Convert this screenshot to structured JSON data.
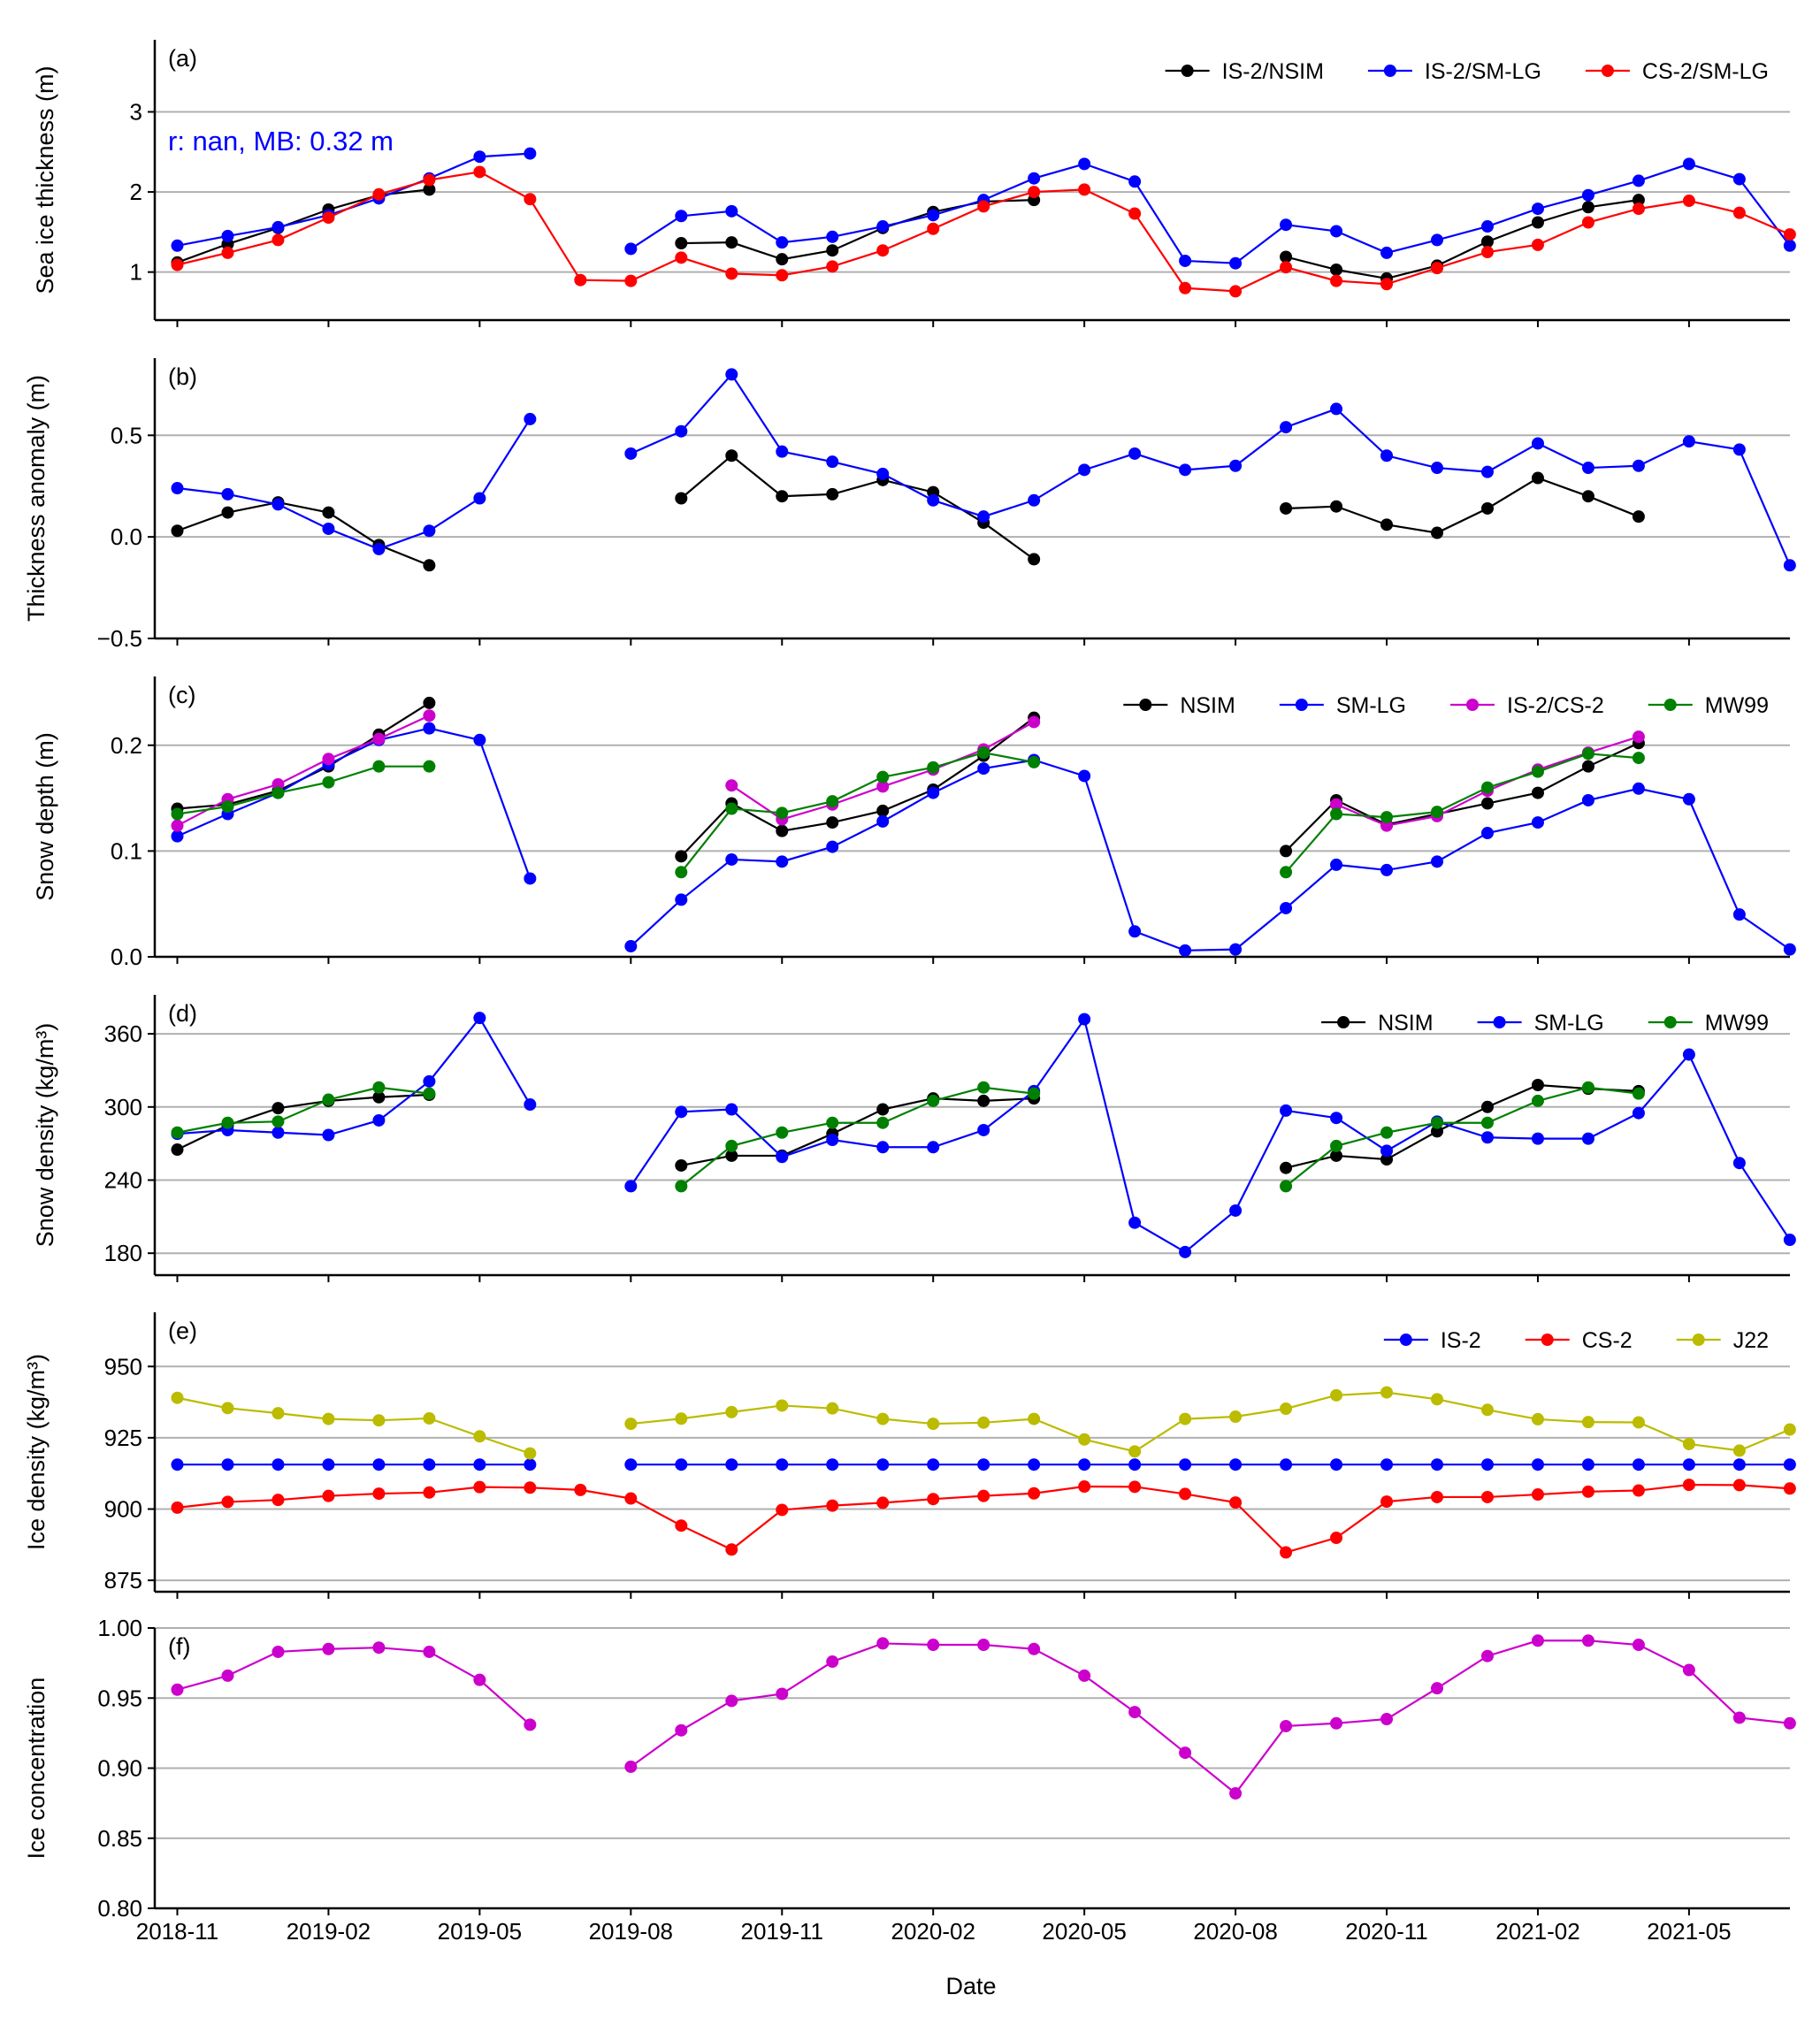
{
  "xlabel": "Date",
  "x_ticks": [
    "2018-11",
    "2019-02",
    "2019-05",
    "2019-08",
    "2019-11",
    "2020-02",
    "2020-05",
    "2020-08",
    "2020-11",
    "2021-02",
    "2021-05"
  ],
  "chart_data": [
    {
      "type": "line",
      "panel_label": "(a)",
      "ylabel": "Sea ice thickness (m)",
      "ylim": [
        0.4,
        3.9
      ],
      "yticks": [
        1,
        2,
        3
      ],
      "tick_labels": [
        "1",
        "2",
        "3"
      ],
      "grid": true,
      "legend": "top-right",
      "annotation": "r: nan, MB: 0.32 m",
      "annotation_color": "#0000ff",
      "x": [
        "2018-11",
        "2018-12",
        "2019-01",
        "2019-02",
        "2019-03",
        "2019-04",
        "2019-05",
        "2019-06",
        "2019-07",
        "2019-08",
        "2019-09",
        "2019-10",
        "2019-11",
        "2019-12",
        "2020-01",
        "2020-02",
        "2020-03",
        "2020-04",
        "2020-05",
        "2020-06",
        "2020-07",
        "2020-08",
        "2020-09",
        "2020-10",
        "2020-11",
        "2020-12",
        "2021-01",
        "2021-02",
        "2021-03",
        "2021-04",
        "2021-05",
        "2021-06",
        "2021-07"
      ],
      "series": [
        {
          "name": "IS-2/NSIM",
          "color": "#000000",
          "values": [
            1.12,
            1.35,
            1.55,
            1.78,
            1.96,
            2.03,
            null,
            null,
            null,
            null,
            1.36,
            1.37,
            1.16,
            1.27,
            1.55,
            1.75,
            1.88,
            1.9,
            null,
            null,
            null,
            null,
            1.19,
            1.03,
            0.92,
            1.08,
            1.38,
            1.62,
            1.81,
            1.9,
            null,
            null,
            null
          ]
        },
        {
          "name": "IS-2/SM-LG",
          "color": "#0000ff",
          "values": [
            1.33,
            1.45,
            1.56,
            1.71,
            1.92,
            2.17,
            2.44,
            2.48,
            null,
            1.29,
            1.7,
            1.76,
            1.37,
            1.44,
            1.57,
            1.71,
            1.9,
            2.17,
            2.35,
            2.13,
            1.14,
            1.11,
            1.59,
            1.51,
            1.24,
            1.4,
            1.57,
            1.79,
            1.96,
            2.14,
            2.35,
            2.16,
            1.33
          ]
        },
        {
          "name": "CS-2/SM-LG",
          "color": "#ff0000",
          "values": [
            1.09,
            1.24,
            1.4,
            1.68,
            1.97,
            2.15,
            2.25,
            1.91,
            0.9,
            0.89,
            1.18,
            0.98,
            0.96,
            1.07,
            1.27,
            1.54,
            1.82,
            2.0,
            2.03,
            1.73,
            0.8,
            0.76,
            1.06,
            0.89,
            0.85,
            1.05,
            1.25,
            1.34,
            1.62,
            1.79,
            1.89,
            1.74,
            1.47
          ]
        }
      ]
    },
    {
      "type": "line",
      "panel_label": "(b)",
      "ylabel": "Thickness anomaly (m)",
      "ylim": [
        -0.5,
        0.88
      ],
      "yticks": [
        -0.5,
        0.0,
        0.5
      ],
      "tick_labels": [
        "−0.5",
        "0.0",
        "0.5"
      ],
      "grid": true,
      "legend": "none",
      "x": [
        "2018-11",
        "2018-12",
        "2019-01",
        "2019-02",
        "2019-03",
        "2019-04",
        "2019-05",
        "2019-06",
        "2019-07",
        "2019-08",
        "2019-09",
        "2019-10",
        "2019-11",
        "2019-12",
        "2020-01",
        "2020-02",
        "2020-03",
        "2020-04",
        "2020-05",
        "2020-06",
        "2020-07",
        "2020-08",
        "2020-09",
        "2020-10",
        "2020-11",
        "2020-12",
        "2021-01",
        "2021-02",
        "2021-03",
        "2021-04",
        "2021-05",
        "2021-06",
        "2021-07"
      ],
      "series": [
        {
          "name": "",
          "color": "#000000",
          "values": [
            0.03,
            0.12,
            0.17,
            0.12,
            -0.04,
            -0.14,
            null,
            null,
            null,
            null,
            0.19,
            0.4,
            0.2,
            0.21,
            0.28,
            0.22,
            0.07,
            -0.11,
            null,
            null,
            null,
            null,
            0.14,
            0.15,
            0.06,
            0.02,
            0.14,
            0.29,
            0.2,
            0.1,
            null,
            null,
            null
          ]
        },
        {
          "name": "",
          "color": "#0000ff",
          "values": [
            0.24,
            0.21,
            0.16,
            0.04,
            -0.06,
            0.03,
            0.19,
            0.58,
            null,
            0.41,
            0.52,
            0.8,
            0.42,
            0.37,
            0.31,
            0.18,
            0.1,
            0.18,
            0.33,
            0.41,
            0.33,
            0.35,
            0.54,
            0.63,
            0.4,
            0.34,
            0.32,
            0.46,
            0.34,
            0.35,
            0.47,
            0.43,
            -0.14
          ]
        }
      ]
    },
    {
      "type": "line",
      "panel_label": "(c)",
      "ylabel": "Snow depth (m)",
      "ylim": [
        0.0,
        0.265
      ],
      "yticks": [
        0.0,
        0.1,
        0.2
      ],
      "tick_labels": [
        "0.0",
        "0.1",
        "0.2"
      ],
      "grid": true,
      "legend": "top-right",
      "x": [
        "2018-11",
        "2018-12",
        "2019-01",
        "2019-02",
        "2019-03",
        "2019-04",
        "2019-05",
        "2019-06",
        "2019-07",
        "2019-08",
        "2019-09",
        "2019-10",
        "2019-11",
        "2019-12",
        "2020-01",
        "2020-02",
        "2020-03",
        "2020-04",
        "2020-05",
        "2020-06",
        "2020-07",
        "2020-08",
        "2020-09",
        "2020-10",
        "2020-11",
        "2020-12",
        "2021-01",
        "2021-02",
        "2021-03",
        "2021-04",
        "2021-05",
        "2021-06",
        "2021-07"
      ],
      "series": [
        {
          "name": "NSIM",
          "color": "#000000",
          "values": [
            0.14,
            0.144,
            0.157,
            0.18,
            0.21,
            0.24,
            null,
            null,
            null,
            null,
            0.095,
            0.145,
            0.119,
            0.127,
            0.138,
            0.158,
            0.19,
            0.226,
            null,
            null,
            null,
            null,
            0.1,
            0.148,
            0.125,
            0.135,
            0.145,
            0.155,
            0.18,
            0.202,
            null,
            null,
            null
          ]
        },
        {
          "name": "SM-LG",
          "color": "#0000ff",
          "values": [
            0.114,
            0.135,
            0.155,
            0.182,
            0.205,
            0.216,
            0.205,
            0.074,
            null,
            0.01,
            0.054,
            0.092,
            0.09,
            0.104,
            0.128,
            0.155,
            0.178,
            0.186,
            0.171,
            0.024,
            0.006,
            0.007,
            0.046,
            0.087,
            0.082,
            0.09,
            0.117,
            0.127,
            0.148,
            0.159,
            0.149,
            0.04,
            0.007
          ]
        },
        {
          "name": "IS-2/CS-2",
          "color": "#cc00cc",
          "values": [
            0.124,
            0.149,
            0.163,
            0.187,
            0.206,
            0.228,
            null,
            null,
            null,
            null,
            null,
            0.162,
            0.13,
            0.144,
            0.161,
            0.177,
            0.196,
            0.222,
            null,
            null,
            null,
            null,
            null,
            0.144,
            0.124,
            0.133,
            0.157,
            0.177,
            0.193,
            0.208,
            null,
            null,
            null
          ]
        },
        {
          "name": "MW99",
          "color": "#008000",
          "values": [
            0.135,
            0.142,
            0.155,
            0.165,
            0.18,
            0.18,
            null,
            null,
            null,
            null,
            0.08,
            0.14,
            0.136,
            0.147,
            0.17,
            0.179,
            0.193,
            0.184,
            null,
            null,
            null,
            null,
            0.08,
            0.135,
            0.132,
            0.137,
            0.16,
            0.175,
            0.192,
            0.188,
            null,
            null,
            null
          ]
        }
      ]
    },
    {
      "type": "line",
      "panel_label": "(d)",
      "ylabel": "Snow density (kg/m³)",
      "ylim": [
        162,
        392
      ],
      "yticks": [
        180,
        240,
        300,
        360
      ],
      "tick_labels": [
        "180",
        "240",
        "300",
        "360"
      ],
      "grid": true,
      "legend": "top-right",
      "x": [
        "2018-11",
        "2018-12",
        "2019-01",
        "2019-02",
        "2019-03",
        "2019-04",
        "2019-05",
        "2019-06",
        "2019-07",
        "2019-08",
        "2019-09",
        "2019-10",
        "2019-11",
        "2019-12",
        "2020-01",
        "2020-02",
        "2020-03",
        "2020-04",
        "2020-05",
        "2020-06",
        "2020-07",
        "2020-08",
        "2020-09",
        "2020-10",
        "2020-11",
        "2020-12",
        "2021-01",
        "2021-02",
        "2021-03",
        "2021-04",
        "2021-05",
        "2021-06",
        "2021-07"
      ],
      "series": [
        {
          "name": "NSIM",
          "color": "#000000",
          "values": [
            265,
            285,
            299,
            305,
            308,
            310,
            null,
            null,
            null,
            null,
            252,
            260,
            260,
            278,
            298,
            307,
            305,
            307,
            null,
            null,
            null,
            null,
            250,
            260,
            257,
            280,
            300,
            318,
            315,
            313,
            null,
            null,
            null
          ]
        },
        {
          "name": "SM-LG",
          "color": "#0000ff",
          "values": [
            278,
            281,
            279,
            277,
            289,
            321,
            373,
            302,
            null,
            235,
            296,
            298,
            259,
            273,
            267,
            267,
            281,
            313,
            372,
            205,
            181,
            215,
            297,
            291,
            264,
            288,
            275,
            274,
            274,
            295,
            343,
            254,
            191
          ]
        },
        {
          "name": "MW99",
          "color": "#008000",
          "values": [
            279,
            287,
            288,
            306,
            316,
            311,
            null,
            null,
            null,
            null,
            235,
            268,
            279,
            287,
            287,
            305,
            316,
            311,
            null,
            null,
            null,
            null,
            235,
            268,
            279,
            287,
            287,
            305,
            316,
            311,
            null,
            null,
            null
          ]
        }
      ]
    },
    {
      "type": "line",
      "panel_label": "(e)",
      "ylabel": "Ice density (kg/m³)",
      "ylim": [
        871,
        969
      ],
      "yticks": [
        875,
        900,
        925,
        950
      ],
      "tick_labels": [
        "875",
        "900",
        "925",
        "950"
      ],
      "grid": true,
      "legend": "top-right",
      "x": [
        "2018-11",
        "2018-12",
        "2019-01",
        "2019-02",
        "2019-03",
        "2019-04",
        "2019-05",
        "2019-06",
        "2019-07",
        "2019-08",
        "2019-09",
        "2019-10",
        "2019-11",
        "2019-12",
        "2020-01",
        "2020-02",
        "2020-03",
        "2020-04",
        "2020-05",
        "2020-06",
        "2020-07",
        "2020-08",
        "2020-09",
        "2020-10",
        "2020-11",
        "2020-12",
        "2021-01",
        "2021-02",
        "2021-03",
        "2021-04",
        "2021-05",
        "2021-06",
        "2021-07"
      ],
      "series": [
        {
          "name": "IS-2",
          "color": "#0000ff",
          "values": [
            915.6,
            915.6,
            915.6,
            915.6,
            915.6,
            915.6,
            915.6,
            915.6,
            null,
            915.6,
            915.6,
            915.6,
            915.6,
            915.6,
            915.6,
            915.6,
            915.6,
            915.6,
            915.6,
            915.6,
            915.6,
            915.6,
            915.6,
            915.6,
            915.6,
            915.6,
            915.6,
            915.6,
            915.6,
            915.6,
            915.6,
            915.6,
            915.6
          ]
        },
        {
          "name": "CS-2",
          "color": "#ff0000",
          "values": [
            900.5,
            902.5,
            903.2,
            904.6,
            905.4,
            905.8,
            907.7,
            907.5,
            906.7,
            903.7,
            894.2,
            885.8,
            899.7,
            901.2,
            902.2,
            903.5,
            904.6,
            905.5,
            907.9,
            907.8,
            905.3,
            902.3,
            884.8,
            889.9,
            902.6,
            904.2,
            904.2,
            905.1,
            906.1,
            906.5,
            908.5,
            908.4,
            907.2
          ]
        },
        {
          "name": "J22",
          "color": "#bbbb00",
          "values": [
            939,
            935.4,
            933.6,
            931.6,
            931.1,
            931.8,
            925.5,
            919.5,
            null,
            929.9,
            931.7,
            934,
            936.3,
            935.3,
            931.6,
            929.9,
            930.3,
            931.6,
            924.4,
            920.2,
            931.6,
            932.4,
            935.2,
            939.9,
            940.9,
            938.5,
            934.8,
            931.5,
            930.5,
            930.4,
            922.8,
            920.5,
            927.9
          ]
        }
      ]
    },
    {
      "type": "line",
      "panel_label": "(f)",
      "ylabel": "Ice concentration",
      "ylim": [
        0.8,
        1.0
      ],
      "yticks": [
        0.8,
        0.85,
        0.9,
        0.95,
        1.0
      ],
      "tick_labels": [
        "0.80",
        "0.85",
        "0.90",
        "0.95",
        "1.00"
      ],
      "grid": true,
      "legend": "none",
      "x": [
        "2018-11",
        "2018-12",
        "2019-01",
        "2019-02",
        "2019-03",
        "2019-04",
        "2019-05",
        "2019-06",
        "2019-07",
        "2019-08",
        "2019-09",
        "2019-10",
        "2019-11",
        "2019-12",
        "2020-01",
        "2020-02",
        "2020-03",
        "2020-04",
        "2020-05",
        "2020-06",
        "2020-07",
        "2020-08",
        "2020-09",
        "2020-10",
        "2020-11",
        "2020-12",
        "2021-01",
        "2021-02",
        "2021-03",
        "2021-04",
        "2021-05",
        "2021-06",
        "2021-07"
      ],
      "series": [
        {
          "name": "",
          "color": "#cc00cc",
          "values": [
            0.956,
            0.966,
            0.983,
            0.985,
            0.986,
            0.983,
            0.963,
            0.931,
            null,
            0.901,
            0.927,
            0.948,
            0.953,
            0.976,
            0.989,
            0.988,
            0.988,
            0.985,
            0.966,
            0.94,
            0.911,
            0.882,
            0.93,
            0.932,
            0.935,
            0.957,
            0.98,
            0.991,
            0.991,
            0.988,
            0.97,
            0.936,
            0.932
          ]
        }
      ]
    }
  ]
}
